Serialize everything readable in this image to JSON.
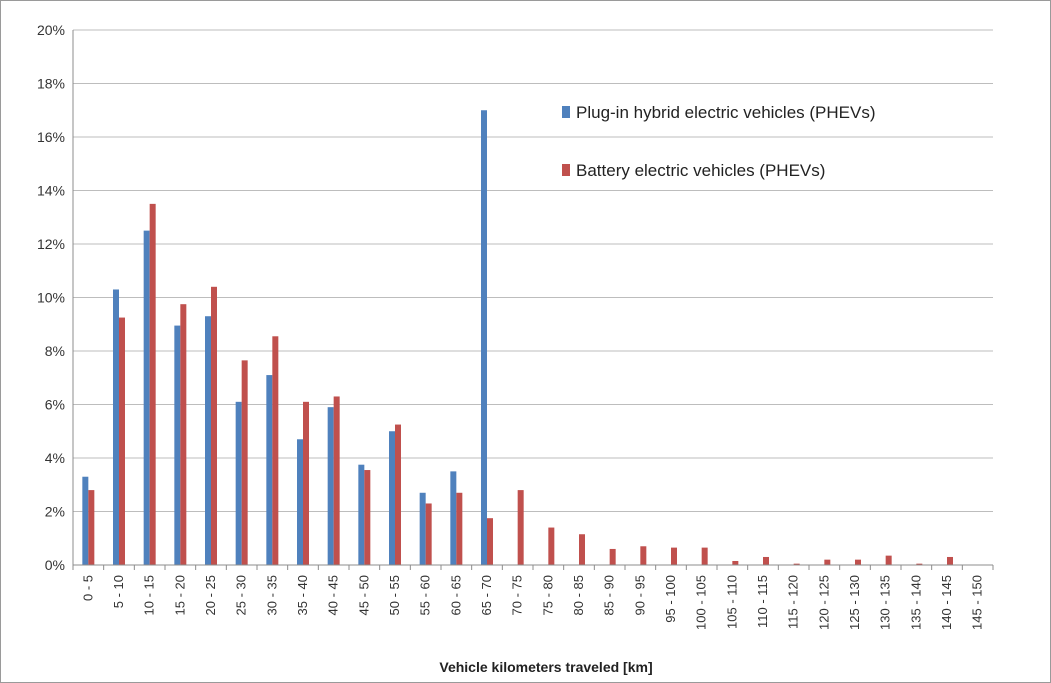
{
  "chart_data": {
    "type": "bar",
    "title": "",
    "xlabel": "Vehicle kilometers traveled [km]",
    "ylabel": "",
    "ylim": [
      0,
      20
    ],
    "y_ticks": [
      0,
      2,
      4,
      6,
      8,
      10,
      12,
      14,
      16,
      18,
      20
    ],
    "y_tick_labels": [
      "0%",
      "2%",
      "4%",
      "6%",
      "8%",
      "10%",
      "12%",
      "14%",
      "16%",
      "18%",
      "20%"
    ],
    "grid": true,
    "legend_position": "top-right",
    "categories": [
      "0 - 5",
      "5 - 10",
      "10 - 15",
      "15 - 20",
      "20 - 25",
      "25 - 30",
      "30 - 35",
      "35 - 40",
      "40 - 45",
      "45 - 50",
      "50 - 55",
      "55 - 60",
      "60 - 65",
      "65 - 70",
      "70 - 75",
      "75 - 80",
      "80 - 85",
      "85 - 90",
      "90 - 95",
      "95 - 100",
      "100 - 105",
      "105 - 110",
      "110 - 115",
      "115 - 120",
      "120 - 125",
      "125 - 130",
      "130 - 135",
      "135 - 140",
      "140 - 145",
      "145 - 150"
    ],
    "series": [
      {
        "name": "Plug-in hybrid electric vehicles (PHEVs)",
        "color": "#4f81bd",
        "values": [
          3.3,
          10.3,
          12.5,
          8.95,
          9.3,
          6.1,
          7.1,
          4.7,
          5.9,
          3.75,
          5.0,
          2.7,
          3.5,
          17.0,
          0,
          0,
          0,
          0,
          0,
          0,
          0,
          0,
          0,
          0,
          0,
          0,
          0,
          0,
          0,
          0
        ]
      },
      {
        "name": "Battery electric vehicles (PHEVs)",
        "color": "#c0504d",
        "values": [
          2.8,
          9.25,
          13.5,
          9.75,
          10.4,
          7.65,
          8.55,
          6.1,
          6.3,
          3.55,
          5.25,
          2.3,
          2.7,
          1.75,
          2.8,
          1.4,
          1.15,
          0.6,
          0.7,
          0.65,
          0.65,
          0.15,
          0.3,
          0.05,
          0.2,
          0.2,
          0.35,
          0.05,
          0.3,
          0
        ]
      }
    ]
  }
}
